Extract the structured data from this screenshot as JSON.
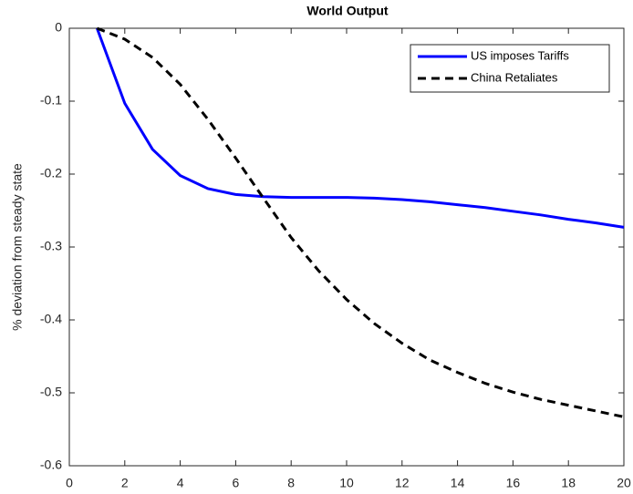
{
  "chart_data": {
    "type": "line",
    "title": "World Output",
    "ylabel": "% deviation from steady state",
    "x": [
      1,
      2,
      3,
      4,
      5,
      6,
      7,
      8,
      9,
      10,
      11,
      12,
      13,
      14,
      15,
      16,
      17,
      18,
      19,
      20
    ],
    "series": [
      {
        "name": "US imposes Tariffs",
        "color": "#0000ff",
        "dash": "solid",
        "values": [
          0,
          -0.103,
          -0.166,
          -0.202,
          -0.22,
          -0.228,
          -0.231,
          -0.232,
          -0.232,
          -0.232,
          -0.233,
          -0.235,
          -0.238,
          -0.242,
          -0.246,
          -0.251,
          -0.256,
          -0.262,
          -0.267,
          -0.273
        ]
      },
      {
        "name": "China Retaliates",
        "color": "#000000",
        "dash": "dashed",
        "values": [
          0,
          -0.015,
          -0.04,
          -0.077,
          -0.125,
          -0.178,
          -0.233,
          -0.287,
          -0.333,
          -0.372,
          -0.405,
          -0.432,
          -0.455,
          -0.472,
          -0.487,
          -0.499,
          -0.509,
          -0.517,
          -0.525,
          -0.533
        ]
      }
    ],
    "xlim": [
      0,
      20
    ],
    "xticks": [
      0,
      2,
      4,
      6,
      8,
      10,
      12,
      14,
      16,
      18,
      20
    ],
    "ylim": [
      -0.6,
      0
    ],
    "yticks": [
      0,
      -0.1,
      -0.2,
      -0.3,
      -0.4,
      -0.5,
      -0.6
    ],
    "grid": false,
    "legend": "northeast"
  }
}
